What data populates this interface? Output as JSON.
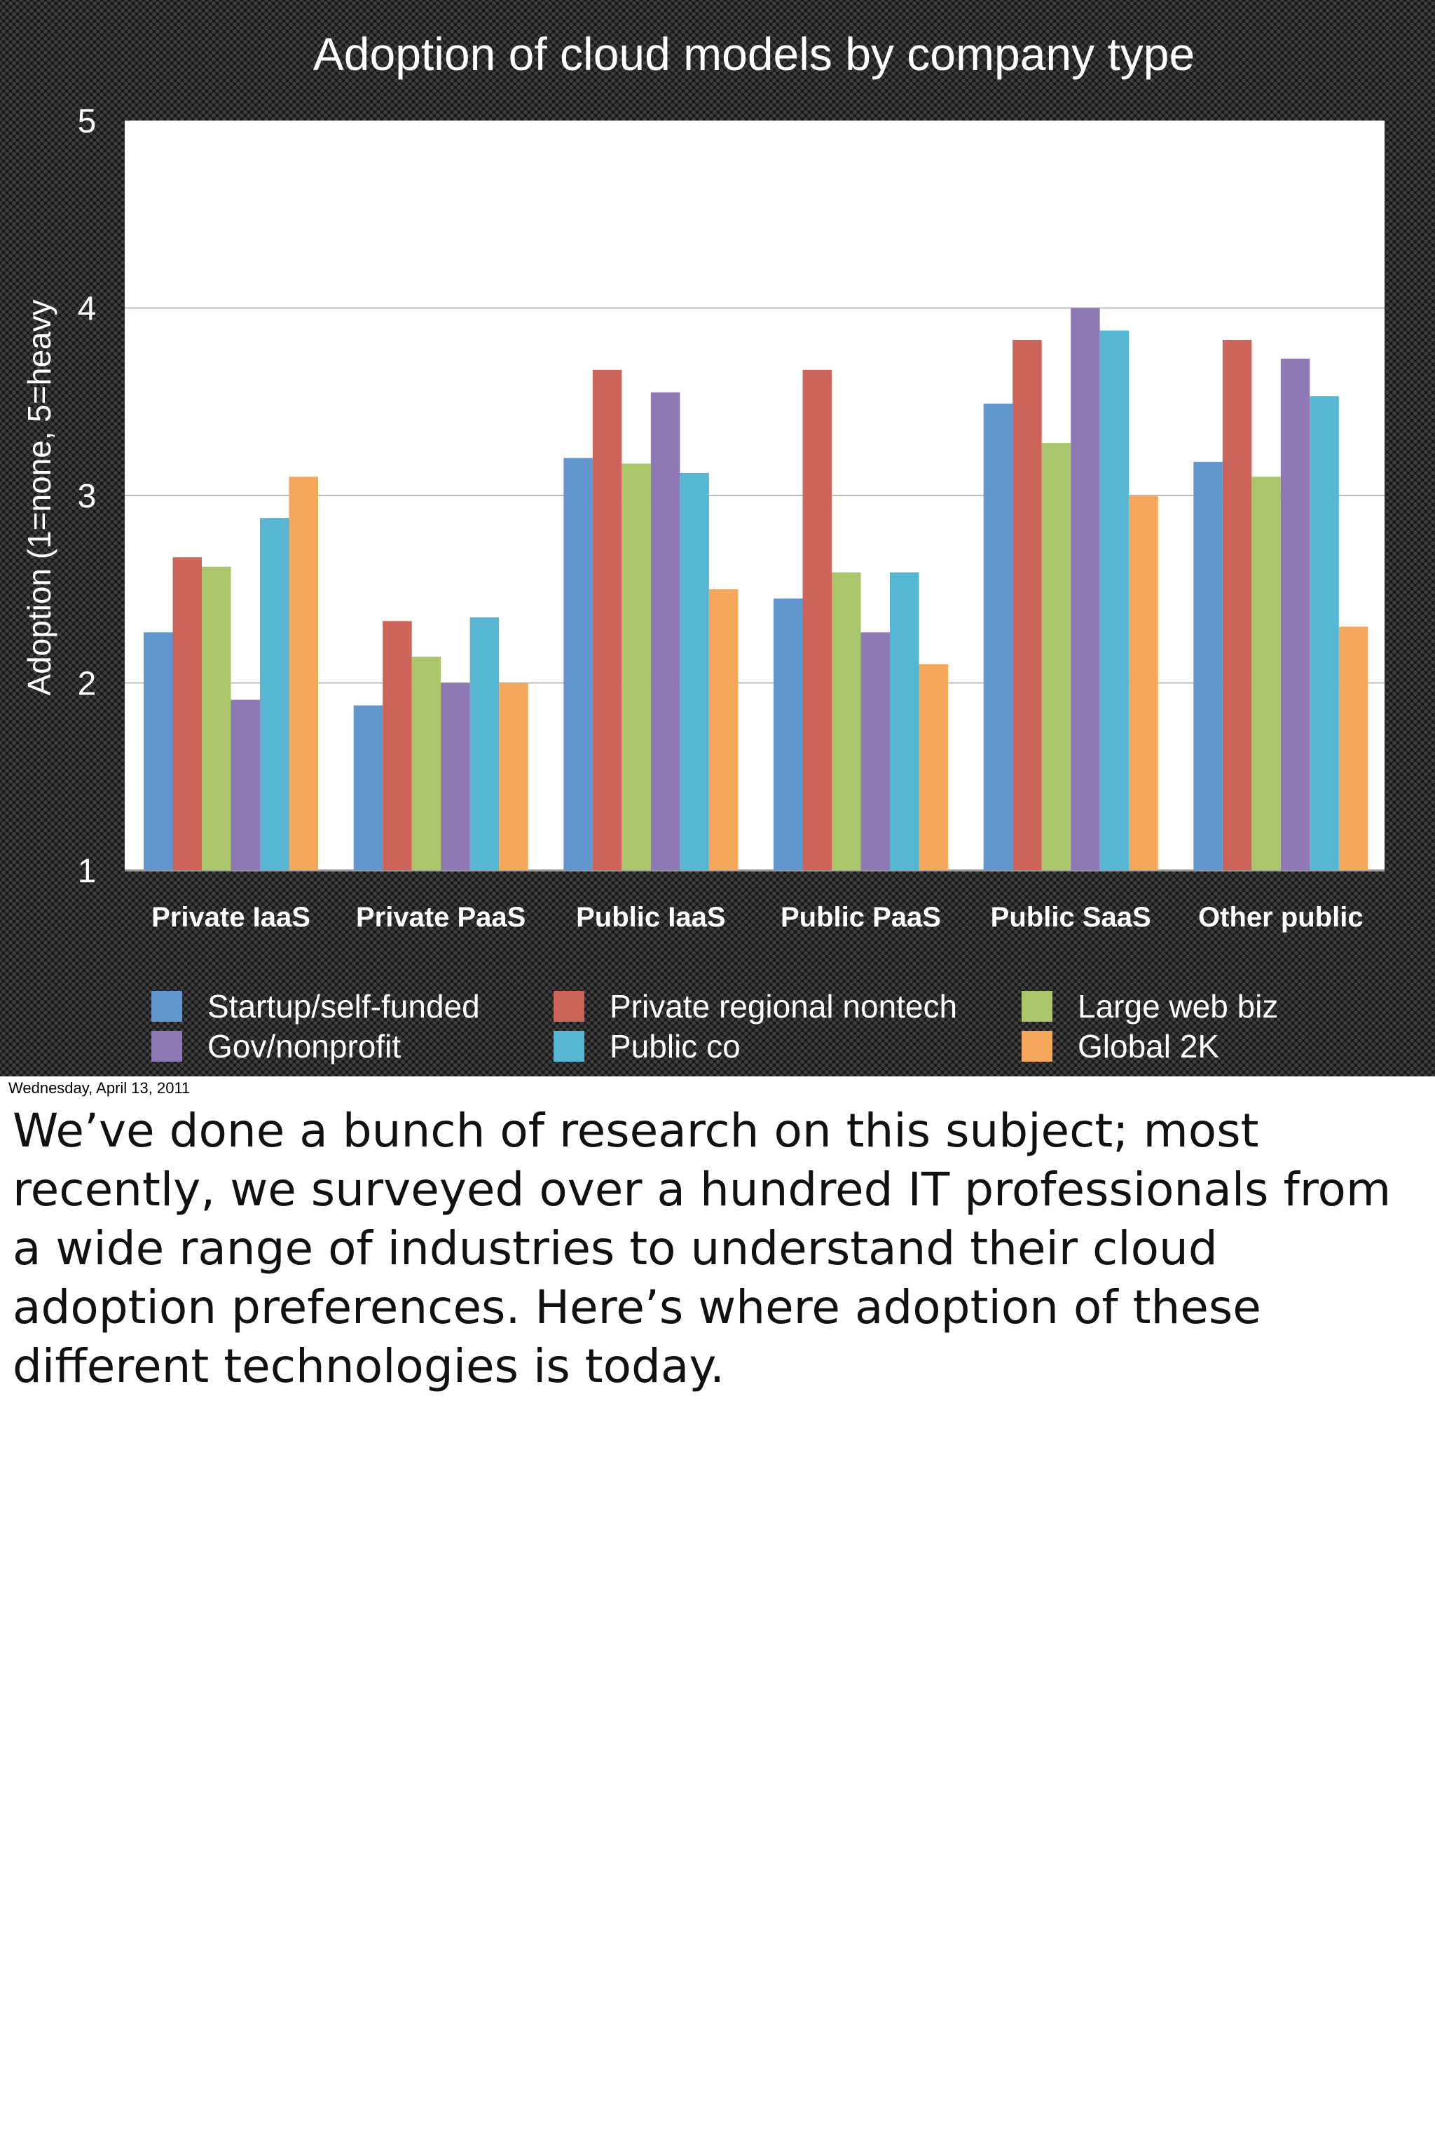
{
  "slide_date": "Wednesday, April 13, 2011",
  "notes": "We’ve done a bunch of research on this subject; most recently, we surveyed over a hundred IT professionals from a wide range of industries to understand their cloud adoption preferences. Here’s where adoption of these different technologies is today.",
  "chart_data": {
    "type": "bar",
    "title": "Adoption of cloud models by company type",
    "xlabel": "",
    "ylabel": "Adoption (1=none, 5=heavy",
    "ylim": [
      1,
      5
    ],
    "yticks": [
      1,
      2,
      3,
      4,
      5
    ],
    "grid": true,
    "legend_position": "bottom",
    "categories": [
      "Private IaaS",
      "Private PaaS",
      "Public IaaS",
      "Public PaaS",
      "Public SaaS",
      "Other public"
    ],
    "series": [
      {
        "name": "Startup/self-funded",
        "color": "#6296CF",
        "values": [
          2.27,
          1.88,
          3.2,
          2.45,
          3.49,
          3.18
        ]
      },
      {
        "name": "Private regional nontech",
        "color": "#CC6459",
        "values": [
          2.67,
          2.33,
          3.67,
          3.67,
          3.83,
          3.83
        ]
      },
      {
        "name": "Large web biz",
        "color": "#A9C66A",
        "values": [
          2.62,
          2.14,
          3.17,
          2.59,
          3.28,
          3.1
        ]
      },
      {
        "name": "Gov/nonprofit",
        "color": "#8E79B5",
        "values": [
          1.91,
          2.0,
          3.55,
          2.27,
          4.0,
          3.73
        ]
      },
      {
        "name": "Public co",
        "color": "#57B7D2",
        "values": [
          2.88,
          2.35,
          3.12,
          2.59,
          3.88,
          3.53
        ]
      },
      {
        "name": "Global 2K",
        "color": "#F4A65B",
        "values": [
          3.1,
          2.0,
          2.5,
          2.1,
          3.0,
          2.3
        ]
      }
    ]
  }
}
